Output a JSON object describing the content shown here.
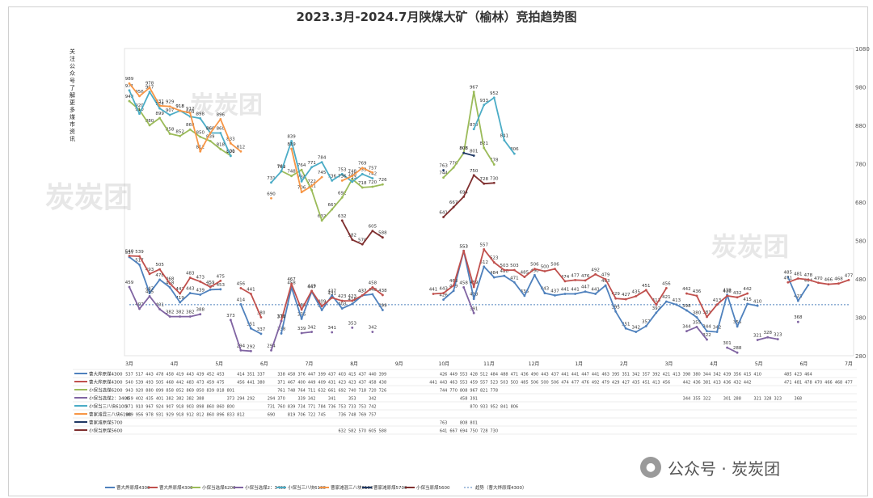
{
  "header": {
    "title": "2023.3月-2024.7月陕煤大矿（榆林）竞拍趋势图",
    "side_note": "关注公众号了解更多煤市资讯"
  },
  "watermarks": [
    "炭炭团",
    "炭炭团",
    "炭炭团"
  ],
  "footer_badge": {
    "icon": "wechat-icon",
    "text": "公众号 · 炭炭团"
  },
  "colors": {
    "s1": "#4f81bd",
    "s2": "#c0504d",
    "s3": "#9bbb59",
    "s4": "#8064a2",
    "s5": "#4bacc6",
    "s6": "#f79646",
    "s7": "#1f3864",
    "s8": "#7f2f2f",
    "avg": "#4f81bd"
  },
  "chart_data": {
    "type": "line",
    "title": "2023.3月-2024.7月陕煤大矿（榆林）竞拍趋势图",
    "ylim": [
      280,
      1080
    ],
    "y_ticks": [
      280,
      380,
      480,
      580,
      680,
      780,
      880,
      980,
      1080
    ],
    "legend_position": "bottom",
    "grid": false,
    "n_points": 72,
    "x_ticks": [
      "3月",
      "4月",
      "5月",
      "6月",
      "7月",
      "8月",
      "9月",
      "10月",
      "11月",
      "12月",
      "1月",
      "2月",
      "3月",
      "4月",
      "5月",
      "6月",
      "7月"
    ],
    "series": [
      {
        "name": "曹大烨原煤4300",
        "values": [
          537,
          517,
          443,
          478,
          458,
          419,
          443,
          439,
          452,
          453,
          null,
          414,
          351,
          337,
          null,
          338,
          458,
          376,
          447,
          399,
          437,
          403,
          415,
          437,
          440,
          399,
          null,
          null,
          null,
          null,
          null,
          426,
          449,
          553,
          428,
          512,
          484,
          488,
          471,
          436,
          490,
          443,
          437,
          441,
          441,
          447,
          441,
          463,
          395,
          351,
          342,
          357,
          392,
          421,
          413,
          398,
          380,
          344,
          342,
          439,
          356,
          415,
          410,
          null,
          null,
          485,
          423,
          464,
          null,
          null,
          null,
          null
        ]
      },
      {
        "name": "曹大烨原煤4300",
        "values": [
          540,
          539,
          493,
          505,
          468,
          442,
          483,
          473,
          459,
          475,
          null,
          456,
          441,
          380,
          null,
          371,
          467,
          400,
          449,
          409,
          431,
          423,
          423,
          437,
          458,
          438,
          null,
          null,
          null,
          null,
          441,
          443,
          463,
          553,
          459,
          557,
          523,
          503,
          503,
          485,
          506,
          500,
          506,
          474,
          477,
          476,
          492,
          479,
          429,
          427,
          435,
          451,
          413,
          456,
          null,
          442,
          436,
          381,
          413,
          436,
          432,
          442,
          null,
          null,
          null,
          471,
          481,
          478,
          470,
          466,
          468,
          477
        ]
      },
      {
        "name": "小保当选煤6200",
        "values": [
          943,
          920,
          880,
          899,
          858,
          852,
          869,
          850,
          839,
          818,
          801,
          null,
          null,
          null,
          null,
          761,
          748,
          764,
          711,
          632,
          661,
          692,
          740,
          718,
          720,
          726,
          null,
          null,
          null,
          null,
          null,
          744,
          770,
          808,
          967,
          821,
          778,
          null,
          null,
          null,
          null,
          null,
          null,
          null,
          null,
          null,
          null,
          null,
          null,
          null,
          null,
          null,
          null,
          null,
          null,
          null,
          null,
          null,
          null,
          null,
          null,
          null,
          null,
          null,
          null,
          null,
          null,
          null,
          null,
          null,
          null,
          null
        ]
      },
      {
        "name": "小保当选煤2：3400",
        "values": [
          459,
          402,
          435,
          401,
          382,
          382,
          382,
          388,
          null,
          null,
          373,
          294,
          292,
          null,
          294,
          370,
          null,
          339,
          342,
          null,
          341,
          null,
          353,
          null,
          342,
          null,
          null,
          null,
          null,
          null,
          null,
          null,
          null,
          458,
          391,
          null,
          null,
          null,
          null,
          null,
          null,
          null,
          null,
          null,
          null,
          null,
          null,
          null,
          null,
          null,
          null,
          null,
          null,
          null,
          null,
          344,
          355,
          322,
          null,
          301,
          288,
          null,
          321,
          328,
          323,
          null,
          368,
          null,
          null,
          null,
          null,
          null
        ]
      },
      {
        "name": "小保当三八块6100",
        "values": [
          971,
          910,
          967,
          924,
          907,
          918,
          903,
          898,
          860,
          860,
          800,
          null,
          null,
          null,
          731,
          760,
          839,
          734,
          771,
          784,
          736,
          753,
          733,
          753,
          742,
          null,
          null,
          null,
          null,
          null,
          null,
          null,
          null,
          null,
          870,
          933,
          952,
          841,
          806,
          null,
          null,
          null,
          null,
          null,
          null,
          null,
          null,
          null,
          null,
          null,
          null,
          null,
          null,
          null,
          null,
          null,
          null,
          null,
          null,
          null,
          null,
          null,
          null,
          null,
          null,
          null,
          null,
          null,
          null,
          null,
          null,
          null
        ]
      },
      {
        "name": "曹家滩混三八块6100",
        "values": [
          989,
          956,
          978,
          931,
          929,
          918,
          912,
          812,
          860,
          896,
          833,
          812,
          null,
          null,
          690,
          null,
          819,
          706,
          722,
          745,
          null,
          736,
          748,
          769,
          757,
          null,
          null,
          null,
          null,
          null,
          null,
          null,
          null,
          null,
          null,
          null,
          null,
          null,
          null,
          null,
          null,
          null,
          null,
          null,
          null,
          null,
          null,
          null,
          null,
          null,
          null,
          null,
          null,
          null,
          null,
          null,
          null,
          null,
          null,
          null,
          null,
          null,
          null,
          null,
          null,
          null,
          null,
          null,
          null,
          null,
          null,
          null
        ]
      },
      {
        "name": "曹家滩原煤5700",
        "values": [
          null,
          null,
          null,
          null,
          null,
          null,
          null,
          null,
          null,
          null,
          null,
          null,
          null,
          null,
          null,
          null,
          null,
          null,
          null,
          null,
          null,
          null,
          null,
          null,
          null,
          null,
          null,
          null,
          null,
          null,
          null,
          763,
          null,
          808,
          801,
          null,
          null,
          null,
          null,
          null,
          null,
          null,
          null,
          null,
          null,
          null,
          null,
          null,
          null,
          null,
          null,
          null,
          null,
          null,
          null,
          null,
          null,
          null,
          null,
          null,
          null,
          null,
          null,
          null,
          null,
          null,
          null,
          null,
          null,
          null,
          null,
          null
        ]
      },
      {
        "name": "小保当原煤5600",
        "values": [
          null,
          null,
          null,
          null,
          null,
          null,
          null,
          null,
          null,
          null,
          null,
          null,
          null,
          null,
          null,
          null,
          null,
          null,
          null,
          null,
          null,
          632,
          582,
          570,
          605,
          588,
          null,
          null,
          null,
          null,
          null,
          641,
          667,
          694,
          750,
          728,
          730,
          null,
          null,
          null,
          null,
          null,
          null,
          null,
          null,
          null,
          null,
          null,
          null,
          null,
          null,
          null,
          null,
          null,
          null,
          null,
          null,
          null,
          null,
          null,
          null,
          null,
          null,
          null,
          null,
          null,
          null,
          null
        ]
      }
    ],
    "avg_line": {
      "name": "趋势（曹大烨原煤4300）",
      "value": 413
    }
  }
}
